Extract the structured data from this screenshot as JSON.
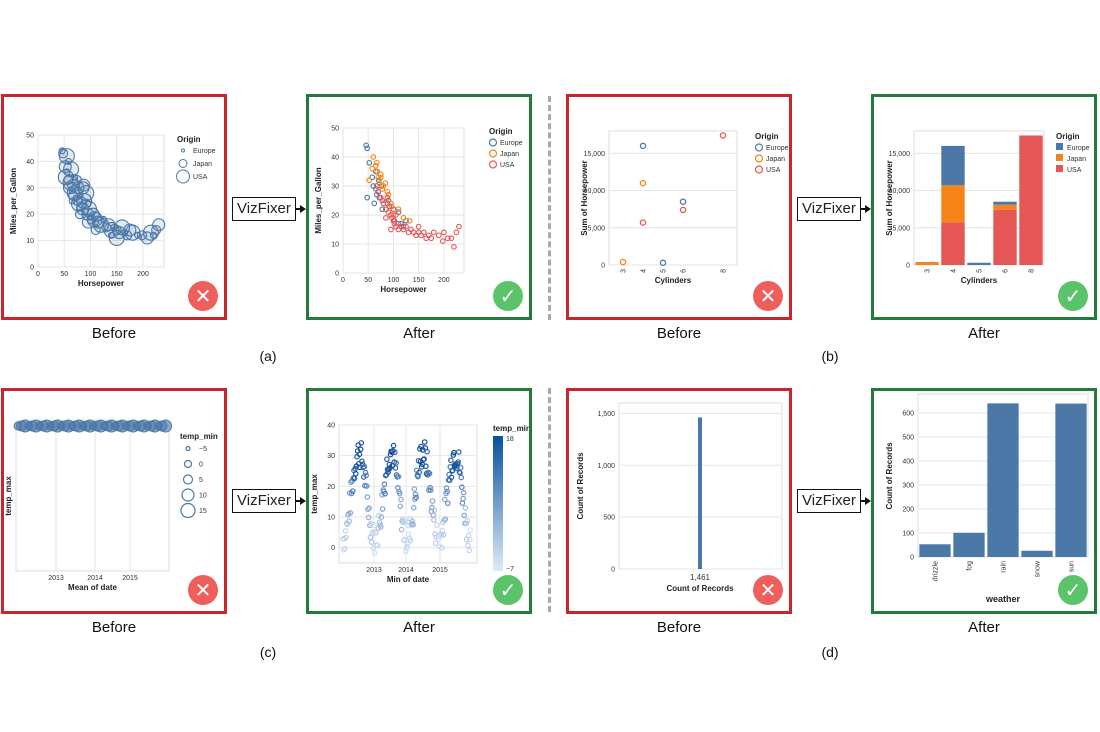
{
  "labels": {
    "before": "Before",
    "after": "After",
    "fixer": "VizFixer",
    "a": "(a)",
    "b": "(b)",
    "c": "(c)",
    "d": "(d)"
  },
  "colors": {
    "blue": "#4c78a8",
    "orange": "#f58518",
    "red": "#e45756",
    "badge_bad": "#ee5f5b",
    "badge_good": "#5bc46a",
    "border_bad": "#c8262c",
    "border_good": "#237a3b"
  },
  "icons": {
    "bad": "✕",
    "good": "✓"
  },
  "chart_data": [
    {
      "type": "scatter",
      "xlabel": "Horsepower",
      "ylabel": "Miles_per_Gallon",
      "xlim": [
        0,
        240
      ],
      "ylim": [
        0,
        50
      ],
      "xticks": [
        0,
        50,
        100,
        150,
        200
      ],
      "yticks": [
        0,
        10,
        20,
        30,
        40,
        50
      ],
      "legend": {
        "title": "Origin",
        "entries": [
          "Europe",
          "Japan",
          "USA"
        ],
        "kind": "size"
      },
      "points": [
        [
          46,
          44
        ],
        [
          48,
          43
        ],
        [
          52,
          38
        ],
        [
          53,
          34
        ],
        [
          55,
          36
        ],
        [
          58,
          33
        ],
        [
          60,
          30
        ],
        [
          62,
          32
        ],
        [
          65,
          29
        ],
        [
          67,
          27
        ],
        [
          68,
          31
        ],
        [
          70,
          28
        ],
        [
          72,
          26
        ],
        [
          75,
          25
        ],
        [
          76,
          30
        ],
        [
          78,
          24
        ],
        [
          80,
          27
        ],
        [
          82,
          23
        ],
        [
          85,
          22
        ],
        [
          88,
          25
        ],
        [
          90,
          21
        ],
        [
          92,
          24
        ],
        [
          95,
          20
        ],
        [
          97,
          22
        ],
        [
          100,
          19
        ],
        [
          102,
          18
        ],
        [
          105,
          20
        ],
        [
          108,
          18
        ],
        [
          110,
          17
        ],
        [
          112,
          19
        ],
        [
          115,
          17
        ],
        [
          120,
          16
        ],
        [
          125,
          18
        ],
        [
          130,
          15
        ],
        [
          135,
          16
        ],
        [
          140,
          14
        ],
        [
          145,
          15
        ],
        [
          150,
          14
        ],
        [
          155,
          13
        ],
        [
          160,
          15
        ],
        [
          165,
          13
        ],
        [
          170,
          12
        ],
        [
          175,
          14
        ],
        [
          180,
          13
        ],
        [
          190,
          12
        ],
        [
          198,
          12
        ],
        [
          208,
          11
        ],
        [
          215,
          13
        ],
        [
          220,
          12
        ],
        [
          225,
          14
        ],
        [
          230,
          16
        ],
        [
          63,
          37
        ],
        [
          70,
          34
        ],
        [
          74,
          33
        ],
        [
          86,
          30
        ],
        [
          92,
          28
        ],
        [
          65,
          25
        ],
        [
          80,
          20
        ],
        [
          96,
          17
        ],
        [
          150,
          11
        ],
        [
          140,
          12
        ],
        [
          110,
          14
        ],
        [
          87,
          31
        ],
        [
          55,
          42
        ],
        [
          58,
          40
        ]
      ]
    },
    {
      "type": "scatter",
      "xlabel": "Horsepower",
      "ylabel": "Miles_per_Gallon",
      "xlim": [
        0,
        240
      ],
      "ylim": [
        0,
        50
      ],
      "xticks": [
        0,
        50,
        100,
        150,
        200
      ],
      "yticks": [
        0,
        10,
        20,
        30,
        40,
        50
      ],
      "legend": {
        "title": "Origin",
        "entries": [
          "Europe",
          "Japan",
          "USA"
        ]
      },
      "series": [
        {
          "name": "Europe",
          "points": [
            [
              46,
              44
            ],
            [
              48,
              43
            ],
            [
              52,
              38
            ],
            [
              58,
              33
            ],
            [
              60,
              30
            ],
            [
              65,
              29
            ],
            [
              67,
              27
            ],
            [
              70,
              28
            ],
            [
              76,
              30
            ],
            [
              48,
              26
            ],
            [
              62,
              24
            ],
            [
              72,
              26
            ],
            [
              78,
              22
            ],
            [
              85,
              22
            ],
            [
              90,
              25
            ],
            [
              102,
              18
            ],
            [
              110,
              21
            ],
            [
              115,
              17
            ],
            [
              120,
              16
            ],
            [
              125,
              18
            ],
            [
              65,
              35
            ],
            [
              71,
              32
            ]
          ]
        },
        {
          "name": "Japan",
          "points": [
            [
              60,
              40
            ],
            [
              65,
              37
            ],
            [
              67,
              38
            ],
            [
              68,
              35
            ],
            [
              70,
              33
            ],
            [
              72,
              31
            ],
            [
              75,
              33
            ],
            [
              75,
              34
            ],
            [
              78,
              29
            ],
            [
              80,
              30
            ],
            [
              84,
              31
            ],
            [
              88,
              28
            ],
            [
              90,
              27
            ],
            [
              95,
              24
            ],
            [
              97,
              23
            ],
            [
              100,
              20
            ],
            [
              110,
              22
            ],
            [
              120,
              19
            ],
            [
              132,
              18
            ],
            [
              52,
              32
            ],
            [
              58,
              36
            ]
          ]
        },
        {
          "name": "USA",
          "points": [
            [
              67,
              30
            ],
            [
              70,
              28
            ],
            [
              75,
              26
            ],
            [
              78,
              25
            ],
            [
              80,
              24
            ],
            [
              85,
              22
            ],
            [
              88,
              24
            ],
            [
              90,
              21
            ],
            [
              92,
              23
            ],
            [
              95,
              20
            ],
            [
              97,
              19
            ],
            [
              100,
              18
            ],
            [
              102,
              17
            ],
            [
              105,
              16
            ],
            [
              105,
              20
            ],
            [
              110,
              17
            ],
            [
              110,
              15
            ],
            [
              115,
              16
            ],
            [
              120,
              15
            ],
            [
              125,
              16
            ],
            [
              130,
              14
            ],
            [
              135,
              15
            ],
            [
              140,
              14
            ],
            [
              145,
              13
            ],
            [
              150,
              14
            ],
            [
              150,
              16
            ],
            [
              155,
              13
            ],
            [
              160,
              14
            ],
            [
              165,
              12
            ],
            [
              170,
              13
            ],
            [
              175,
              12
            ],
            [
              180,
              14
            ],
            [
              190,
              13
            ],
            [
              198,
              11
            ],
            [
              200,
              14
            ],
            [
              208,
              12
            ],
            [
              215,
              12
            ],
            [
              220,
              9
            ],
            [
              225,
              14
            ],
            [
              230,
              16
            ],
            [
              85,
              19
            ],
            [
              95,
              15
            ],
            [
              88,
              26
            ],
            [
              100,
              22
            ]
          ]
        }
      ]
    },
    {
      "type": "scatter",
      "xlabel": "Cylinders",
      "ylabel": "Sum of Horsepower",
      "ylim": [
        0,
        18000
      ],
      "xticks": [
        3,
        4,
        5,
        6,
        8
      ],
      "yticks": [
        0,
        5000,
        10000,
        15000
      ],
      "ytick_labels": [
        "0",
        "5,000",
        "10,000",
        "15,000"
      ],
      "legend": {
        "title": "Origin",
        "entries": [
          "Europe",
          "Japan",
          "USA"
        ]
      },
      "series": [
        {
          "name": "Europe",
          "points": [
            [
              4,
              16000
            ],
            [
              5,
              300
            ],
            [
              6,
              8500
            ]
          ]
        },
        {
          "name": "Japan",
          "points": [
            [
              3,
              400
            ],
            [
              4,
              11000
            ]
          ]
        },
        {
          "name": "USA",
          "points": [
            [
              4,
              5700
            ],
            [
              6,
              7400
            ],
            [
              8,
              17400
            ]
          ]
        }
      ]
    },
    {
      "type": "bar",
      "xlabel": "Cylinders",
      "ylabel": "Sum of Horsepower",
      "ylim": [
        0,
        18000
      ],
      "categories": [
        "3",
        "4",
        "5",
        "6",
        "8"
      ],
      "yticks": [
        0,
        5000,
        10000,
        15000
      ],
      "ytick_labels": [
        "0",
        "5,000",
        "10,000",
        "15,000"
      ],
      "legend": {
        "title": "Origin",
        "entries": [
          "Europe",
          "Japan",
          "USA"
        ]
      },
      "series": [
        {
          "name": "USA",
          "values": [
            0,
            5700,
            0,
            7400,
            17400
          ]
        },
        {
          "name": "Japan",
          "values": [
            400,
            5000,
            0,
            700,
            0
          ]
        },
        {
          "name": "Europe",
          "values": [
            0,
            5300,
            300,
            400,
            0
          ]
        }
      ]
    },
    {
      "type": "scatter",
      "xlabel": "Mean of date",
      "ylabel": "temp_max",
      "xticks": [
        "2013",
        "2014",
        "2015"
      ],
      "legend": {
        "title": "temp_min",
        "entries": [
          "−5",
          "0",
          "5",
          "10",
          "15"
        ],
        "kind": "size"
      }
    },
    {
      "type": "scatter",
      "xlabel": "Min of date",
      "ylabel": "temp_max",
      "ylim": [
        -5,
        40
      ],
      "xticks": [
        "2013",
        "2014",
        "2015"
      ],
      "yticks": [
        0,
        10,
        20,
        30,
        40
      ],
      "legend": {
        "title": "temp_min",
        "max": "18",
        "min": "−7",
        "kind": "gradient"
      }
    },
    {
      "type": "bar",
      "xlabel": "Count of Records",
      "ylabel": "Count of Records",
      "ylim": [
        0,
        1600
      ],
      "yticks": [
        0,
        500,
        1000,
        1500
      ],
      "ytick_labels": [
        "0",
        "500",
        "1,000",
        "1,500"
      ],
      "categories": [
        "1,461"
      ],
      "values": [
        1461
      ]
    },
    {
      "type": "bar",
      "xlabel": "weather",
      "ylabel": "Count of Records",
      "ylim": [
        0,
        680
      ],
      "yticks": [
        0,
        100,
        200,
        300,
        400,
        500,
        600
      ],
      "categories": [
        "drizzle",
        "fog",
        "rain",
        "snow",
        "sun"
      ],
      "values": [
        53,
        101,
        641,
        26,
        640
      ]
    }
  ]
}
